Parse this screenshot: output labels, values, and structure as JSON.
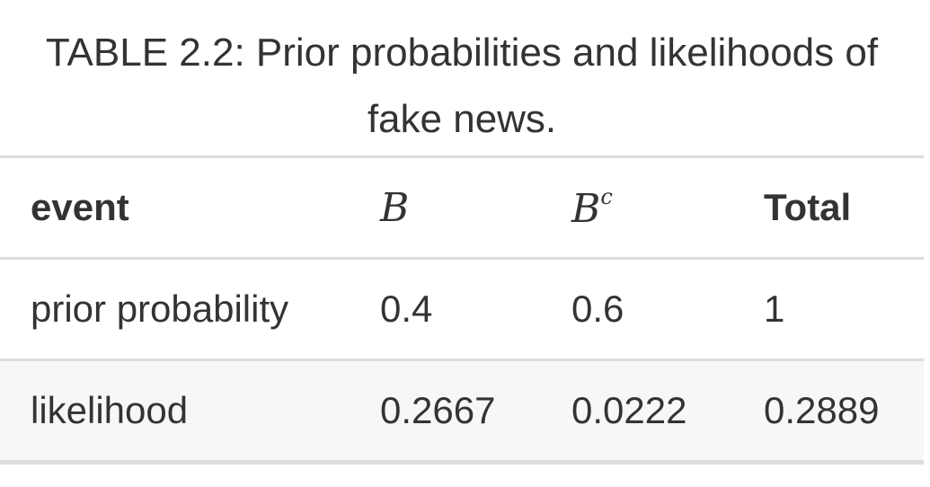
{
  "caption": {
    "line1": "TABLE 2.2: Prior probabilities and likelihoods of",
    "line2": "fake news."
  },
  "table": {
    "headers": {
      "event": "event",
      "b": "B",
      "bc_base": "B",
      "bc_sup": "c",
      "total": "Total"
    },
    "rows": [
      {
        "event": "prior probability",
        "b": "0.4",
        "bc": "0.6",
        "total": "1"
      },
      {
        "event": "likelihood",
        "b": "0.2667",
        "bc": "0.0222",
        "total": "0.2889"
      }
    ]
  }
}
